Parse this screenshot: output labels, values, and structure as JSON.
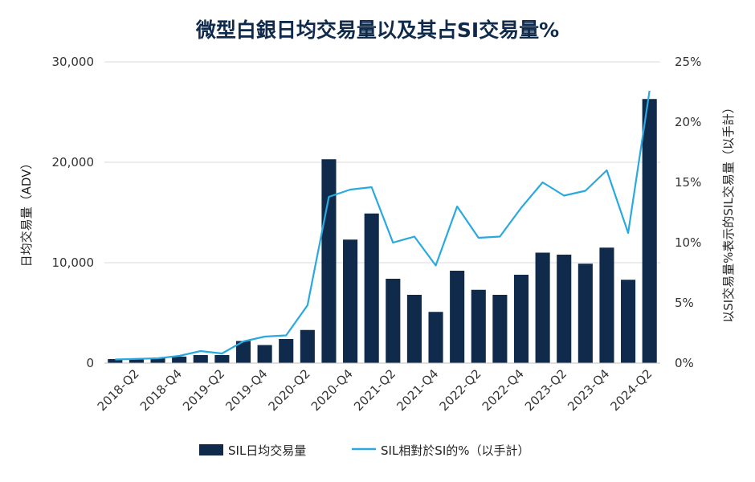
{
  "chart_data": {
    "type": "bar",
    "title": "微型白銀日均交易量以及其占SI交易量%",
    "ylabel": "日均交易量（ADV）",
    "y2label": "以SI交易量%表示的SIL交易量（以手計）",
    "ylim": [
      0,
      30000
    ],
    "y2lim": [
      0,
      25
    ],
    "yticks": [
      "0",
      "10,000",
      "20,000",
      "30,000"
    ],
    "y2ticks": [
      "0%",
      "5%",
      "10%",
      "15%",
      "20%",
      "25%"
    ],
    "categories": [
      "2018-Q1",
      "2018-Q2",
      "2018-Q3",
      "2018-Q4",
      "2019-Q1",
      "2019-Q2",
      "2019-Q3",
      "2019-Q4",
      "2020-Q1",
      "2020-Q2",
      "2020-Q3",
      "2020-Q4",
      "2021-Q1",
      "2021-Q2",
      "2021-Q3",
      "2021-Q4",
      "2022-Q1",
      "2022-Q2",
      "2022-Q3",
      "2022-Q4",
      "2023-Q1",
      "2023-Q2",
      "2023-Q3",
      "2023-Q4",
      "2024-Q1",
      "2024-Q2"
    ],
    "xtick_labels": [
      "2018-Q2",
      "2018-Q4",
      "2019-Q2",
      "2019-Q4",
      "2020-Q2",
      "2020-Q4",
      "2021-Q2",
      "2021-Q4",
      "2022-Q2",
      "2022-Q4",
      "2023-Q2",
      "2023-Q4",
      "2024-Q2"
    ],
    "series": [
      {
        "name": "SIL日均交易量",
        "type": "bar",
        "axis": "left",
        "color": "#0f2a4a",
        "values": [
          400,
          450,
          500,
          650,
          800,
          800,
          2200,
          1800,
          2400,
          3300,
          20300,
          12300,
          14900,
          8400,
          6800,
          5100,
          9200,
          7300,
          6800,
          8800,
          11000,
          10800,
          9900,
          11500,
          8300,
          26300
        ]
      },
      {
        "name": "SIL相對於SI的%（以手計）",
        "type": "line",
        "axis": "right",
        "color": "#29a9e0",
        "values": [
          0.3,
          0.35,
          0.4,
          0.6,
          1.0,
          0.8,
          1.8,
          2.2,
          2.3,
          4.8,
          13.8,
          14.4,
          14.6,
          10.0,
          10.5,
          8.1,
          13.0,
          10.4,
          10.5,
          12.9,
          15.0,
          13.9,
          14.3,
          16.0,
          10.8,
          22.6
        ]
      }
    ],
    "grid": true,
    "legend_position": "bottom"
  },
  "colors": {
    "bar": "#0f2a4a",
    "line": "#29a9e0",
    "grid": "#d9d9d9",
    "title": "#0f2a4a"
  }
}
